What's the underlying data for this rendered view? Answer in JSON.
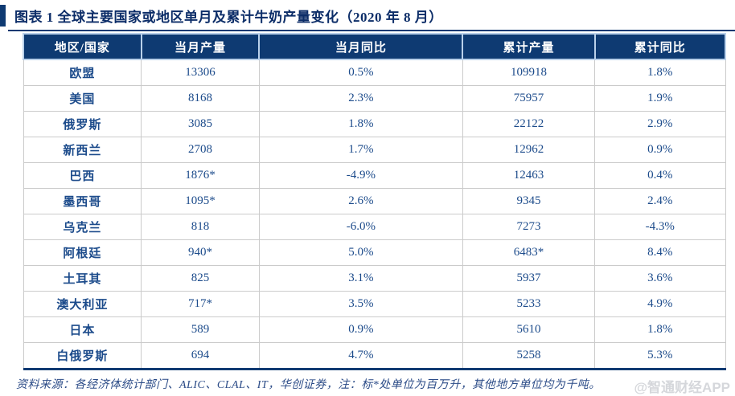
{
  "figure": {
    "title": "图表 1  全球主要国家或地区单月及累计牛奶产量变化（2020 年 8 月）",
    "source_note": "资料来源：各经济体统计部门、ALIC、CLAL、IT，华创证券，注：标*处单位为百万升，其他地方单位均为千吨。",
    "watermark": "@智通财经APP"
  },
  "colors": {
    "header_bg": "#0e3a72",
    "header_text": "#ffffff",
    "header_divider": "#b9d0ea",
    "body_text": "#1c4b8b",
    "title_text": "#0c2d68",
    "grid_line": "#cbcbcb",
    "bottom_border": "#0e3a72",
    "watermark_text": "#d5d7db"
  },
  "table": {
    "headers": [
      "地区/国家",
      "当月产量",
      "当月同比",
      "累计产量",
      "累计同比"
    ],
    "rows": [
      [
        "欧盟",
        "13306",
        "0.5%",
        "109918",
        "1.8%"
      ],
      [
        "美国",
        "8168",
        "2.3%",
        "75957",
        "1.9%"
      ],
      [
        "俄罗斯",
        "3085",
        "1.8%",
        "22122",
        "2.9%"
      ],
      [
        "新西兰",
        "2708",
        "1.7%",
        "12962",
        "0.9%"
      ],
      [
        "巴西",
        "1876*",
        "-4.9%",
        "12463",
        "0.4%"
      ],
      [
        "墨西哥",
        "1095*",
        "2.6%",
        "9345",
        "2.4%"
      ],
      [
        "乌克兰",
        "818",
        "-6.0%",
        "7273",
        "-4.3%"
      ],
      [
        "阿根廷",
        "940*",
        "5.0%",
        "6483*",
        "8.4%"
      ],
      [
        "土耳其",
        "825",
        "3.1%",
        "5937",
        "3.6%"
      ],
      [
        "澳大利亚",
        "717*",
        "3.5%",
        "5233",
        "4.9%"
      ],
      [
        "日本",
        "589",
        "0.9%",
        "5610",
        "1.8%"
      ],
      [
        "白俄罗斯",
        "694",
        "4.7%",
        "5258",
        "5.3%"
      ]
    ]
  }
}
